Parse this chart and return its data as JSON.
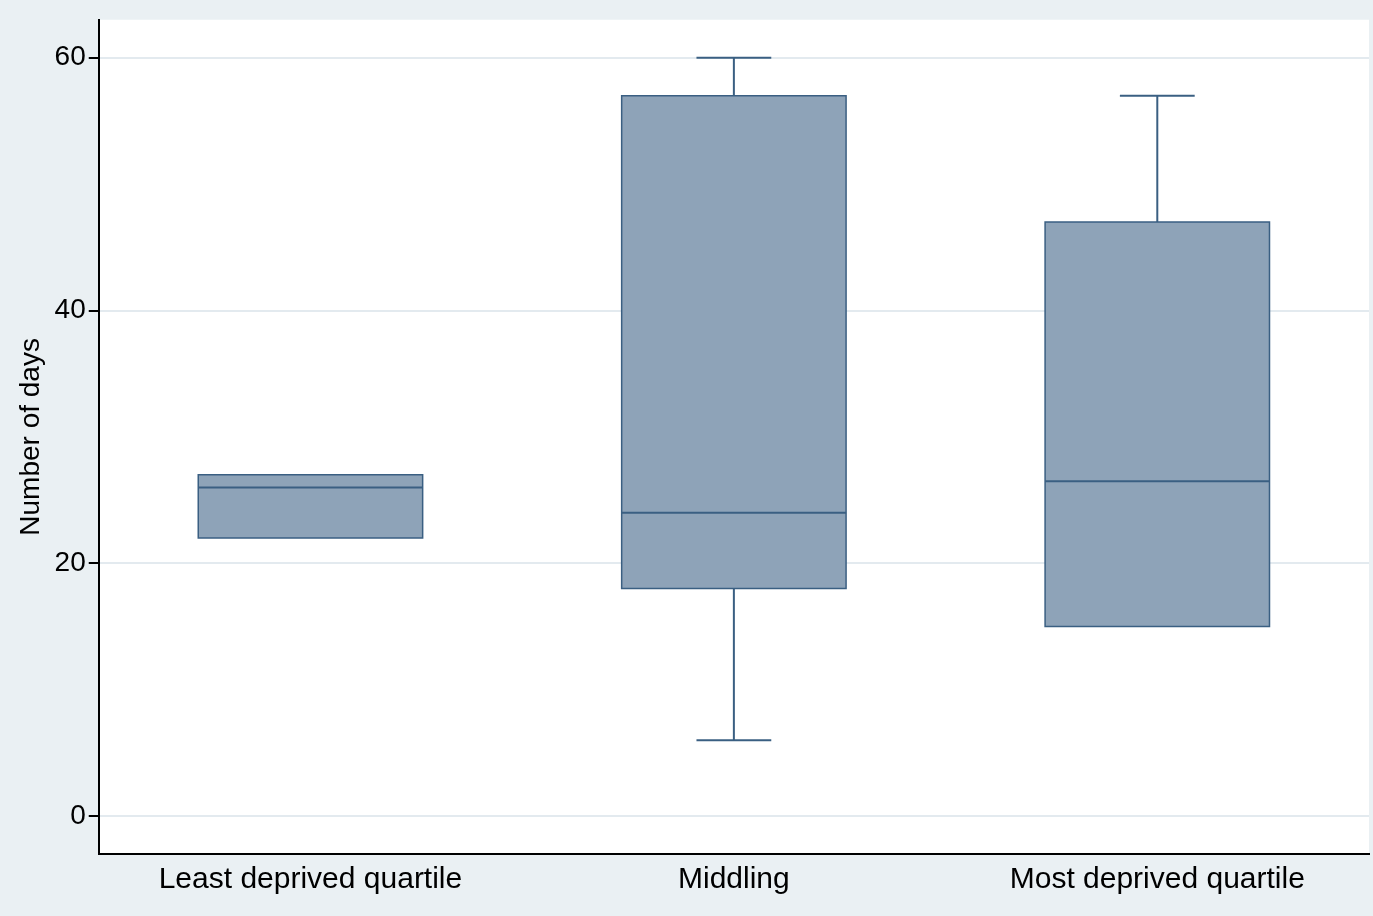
{
  "chart_data": {
    "type": "box",
    "ylabel": "Number of days",
    "categories": [
      "Least deprived quartile",
      "Middling",
      "Most deprived quartile"
    ],
    "color": "#8ea3b8",
    "boxes": [
      {
        "low": 22,
        "q1": 22,
        "median": 26,
        "q3": 27,
        "high": 27
      },
      {
        "low": 6,
        "q1": 18,
        "median": 24,
        "q3": 57,
        "high": 60
      },
      {
        "low": 15,
        "q1": 15,
        "median": 26.5,
        "q3": 47,
        "high": 57
      }
    ],
    "ylim": [
      -3,
      63
    ],
    "yticks": [
      0,
      20,
      40,
      60
    ],
    "grid": "y"
  }
}
